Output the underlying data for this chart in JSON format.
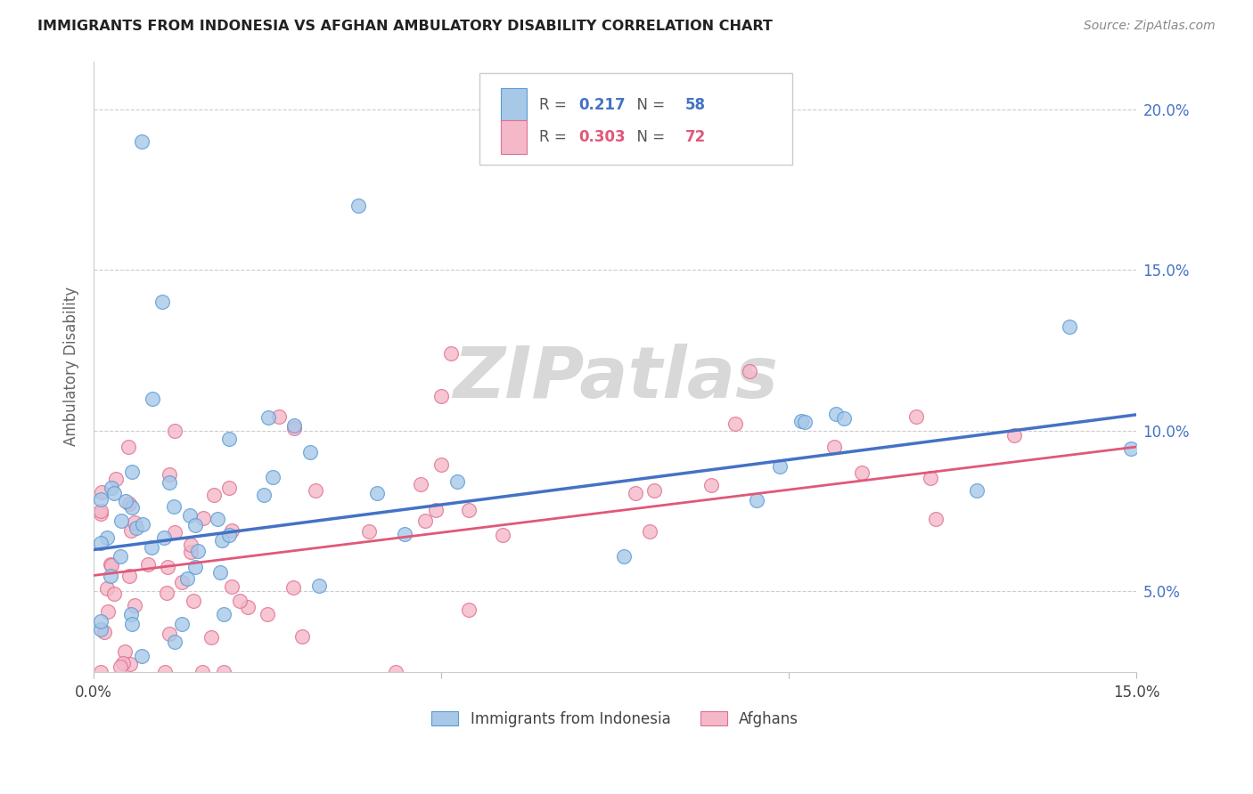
{
  "title": "IMMIGRANTS FROM INDONESIA VS AFGHAN AMBULATORY DISABILITY CORRELATION CHART",
  "source": "Source: ZipAtlas.com",
  "ylabel": "Ambulatory Disability",
  "xlim": [
    0.0,
    0.15
  ],
  "ylim": [
    0.025,
    0.215
  ],
  "blue_color": "#a8c8e8",
  "blue_edge_color": "#5b9bd5",
  "blue_line_color": "#4472c4",
  "pink_color": "#f4b8c8",
  "pink_edge_color": "#e07090",
  "pink_line_color": "#e05878",
  "R_blue": 0.217,
  "N_blue": 58,
  "R_pink": 0.303,
  "N_pink": 72,
  "legend_label_blue": "Immigrants from Indonesia",
  "legend_label_pink": "Afghans",
  "background_color": "#ffffff",
  "grid_color": "#cccccc",
  "watermark": "ZIPatlas",
  "watermark_color": "#d8d8d8",
  "blue_R_color": "#4472c4",
  "blue_N_color": "#4472c4",
  "pink_R_color": "#e05878",
  "pink_N_color": "#e05878",
  "blue_line_start_y": 0.063,
  "blue_line_end_y": 0.105,
  "pink_line_start_y": 0.055,
  "pink_line_end_y": 0.095
}
